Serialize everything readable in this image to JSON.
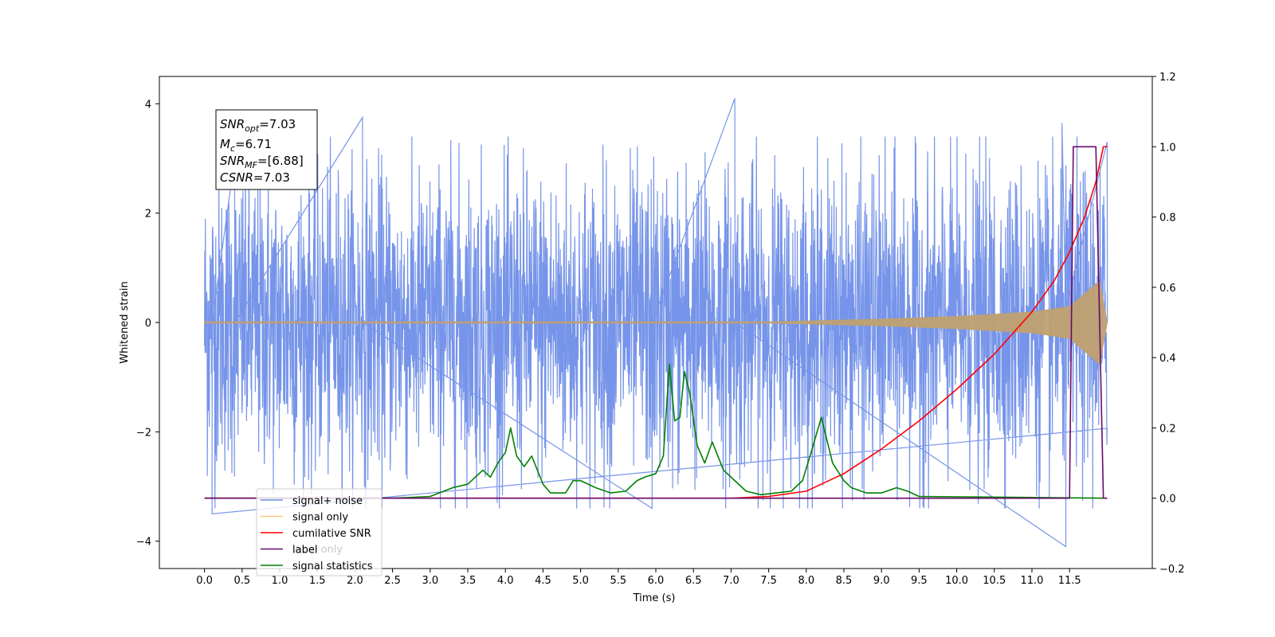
{
  "chart_data": {
    "type": "line",
    "title": "",
    "xlabel": "Time (s)",
    "ylabel": "Whitened strain",
    "xlim": [
      -0.6,
      12.6
    ],
    "ylim": [
      -4.5,
      4.5
    ],
    "y2lim": [
      -0.2,
      1.2
    ],
    "x_ticks": [
      "0.0",
      "0.5",
      "1.0",
      "1.5",
      "2.0",
      "2.5",
      "3.0",
      "3.5",
      "4.0",
      "4.5",
      "5.0",
      "5.5",
      "6.0",
      "6.5",
      "7.0",
      "7.5",
      "8.0",
      "8.5",
      "9.0",
      "9.5",
      "10.0",
      "10.5",
      "11.0",
      "11.5"
    ],
    "y_ticks": [
      "4",
      "2",
      "0",
      "−2",
      "−4"
    ],
    "y2_ticks": [
      "1.2",
      "1.0",
      "0.8",
      "0.6",
      "0.4",
      "0.2",
      "0.0",
      "−0.2"
    ],
    "grid": false,
    "legend_position": "lower-left",
    "legend": [
      {
        "label": "signal+ noise",
        "color": "#6f8ee8"
      },
      {
        "label": "signal only",
        "color": "#ffc87a"
      },
      {
        "label": "cumilative SNR",
        "color": "#ff0000"
      },
      {
        "label": "label",
        "color": "#6a0a6a"
      },
      {
        "label": "signal statistics",
        "color": "#008000"
      }
    ],
    "hidden_legend_text": "label only",
    "annotation": {
      "snr_opt": {
        "sym": "SNR",
        "sub": "opt",
        "value": "=7.03"
      },
      "mc": {
        "sym": "M",
        "sub": "c",
        "value": "=6.71"
      },
      "snr_mf": {
        "sym": "SNR",
        "sub": "MF",
        "value": "=[6.88]"
      },
      "csnr": {
        "sym": "CSNR",
        "value": "=7.03"
      }
    },
    "series": [
      {
        "name": "signal+ noise",
        "axis": "left",
        "color": "#6f8ee8",
        "x_range": [
          0.0,
          12.0
        ],
        "approx_envelope": 2.2,
        "notable_spikes": [
          [
            0.1,
            -3.5
          ],
          [
            0.4,
            3.0
          ],
          [
            2.1,
            3.75
          ],
          [
            5.95,
            -3.4
          ],
          [
            7.05,
            4.1
          ],
          [
            11.45,
            -4.1
          ],
          [
            11.4,
            3.65
          ],
          [
            12.0,
            3.3
          ]
        ]
      },
      {
        "name": "signal only",
        "axis": "left",
        "color": "#c0a070",
        "x_range": [
          0.0,
          12.0
        ],
        "amplitude_points": [
          [
            0.0,
            0.0
          ],
          [
            7.5,
            0.0
          ],
          [
            9.0,
            0.05
          ],
          [
            10.0,
            0.1
          ],
          [
            11.0,
            0.18
          ],
          [
            11.5,
            0.28
          ],
          [
            11.9,
            0.75
          ],
          [
            12.0,
            0.0
          ]
        ]
      },
      {
        "name": "cumilative SNR",
        "axis": "right",
        "color": "#ff0000",
        "x": [
          0.0,
          7.0,
          7.5,
          8.0,
          8.5,
          9.0,
          9.5,
          10.0,
          10.5,
          11.0,
          11.3,
          11.5,
          11.7,
          11.85,
          11.95,
          12.0
        ],
        "y": [
          0.0,
          0.0,
          0.005,
          0.02,
          0.07,
          0.14,
          0.22,
          0.31,
          0.41,
          0.53,
          0.62,
          0.7,
          0.8,
          0.9,
          1.0,
          1.0
        ]
      },
      {
        "name": "label",
        "axis": "right",
        "color": "#6a0a6a",
        "x": [
          0.0,
          11.5,
          11.55,
          11.85,
          11.95,
          12.0
        ],
        "y": [
          0.0,
          0.0,
          1.0,
          1.0,
          0.0,
          0.0
        ]
      },
      {
        "name": "signal statistics",
        "axis": "right",
        "color": "#008000",
        "x": [
          0.0,
          2.5,
          3.0,
          3.3,
          3.5,
          3.7,
          3.8,
          3.9,
          4.0,
          4.07,
          4.15,
          4.25,
          4.35,
          4.5,
          4.6,
          4.8,
          4.9,
          5.0,
          5.2,
          5.4,
          5.6,
          5.75,
          5.85,
          6.0,
          6.1,
          6.18,
          6.25,
          6.32,
          6.38,
          6.45,
          6.55,
          6.65,
          6.75,
          6.9,
          7.05,
          7.2,
          7.4,
          7.6,
          7.8,
          7.95,
          8.05,
          8.2,
          8.35,
          8.5,
          8.6,
          8.8,
          9.0,
          9.2,
          9.35,
          9.5,
          12.0
        ],
        "y": [
          0.0,
          0.0,
          0.005,
          0.03,
          0.04,
          0.08,
          0.06,
          0.1,
          0.13,
          0.2,
          0.12,
          0.09,
          0.12,
          0.04,
          0.015,
          0.015,
          0.05,
          0.05,
          0.03,
          0.015,
          0.02,
          0.05,
          0.06,
          0.07,
          0.12,
          0.38,
          0.22,
          0.23,
          0.36,
          0.3,
          0.15,
          0.1,
          0.16,
          0.08,
          0.05,
          0.02,
          0.01,
          0.015,
          0.02,
          0.05,
          0.12,
          0.23,
          0.1,
          0.05,
          0.03,
          0.015,
          0.015,
          0.03,
          0.02,
          0.005,
          0.0
        ]
      }
    ]
  }
}
